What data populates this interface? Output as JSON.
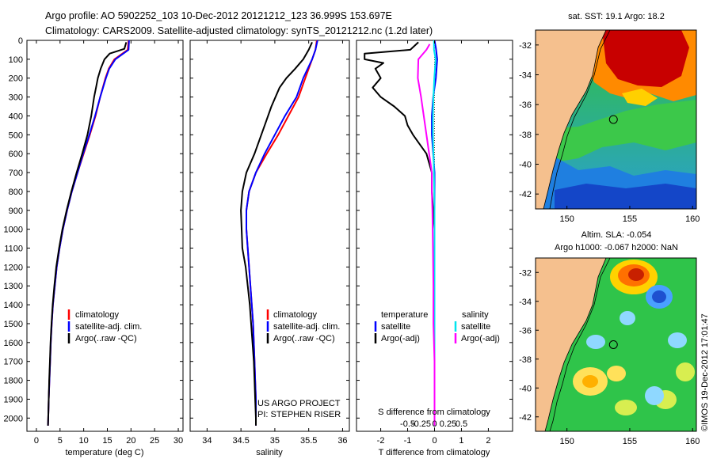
{
  "title_line1": "Argo profile: AO 5902252_103 10-Dec-2012 20121212_123 36.999S 153.697E",
  "title_line2": "Climatology: CARS2009. Satellite-adjusted climatology: synTS_20121212.nc (1.2d later)",
  "chart_data": [
    {
      "type": "line",
      "xlabel": "temperature (deg C)",
      "xlim": [
        -2,
        31
      ],
      "xticks": [
        0,
        5,
        10,
        15,
        20,
        25,
        30
      ],
      "ylim": [
        0,
        2070
      ],
      "yticks": [
        0,
        100,
        200,
        300,
        400,
        500,
        600,
        700,
        800,
        900,
        1000,
        1100,
        1200,
        1300,
        1400,
        1500,
        1600,
        1700,
        1800,
        1900,
        2000
      ],
      "legend": [
        "climatology",
        "satellite-adj. clim.",
        "Argo(..raw -QC)"
      ],
      "series": [
        {
          "name": "climatology",
          "color": "#ff0000",
          "points": [
            [
              19.5,
              0
            ],
            [
              19.3,
              50
            ],
            [
              16.5,
              100
            ],
            [
              15.3,
              150
            ],
            [
              14.6,
              200
            ],
            [
              13.5,
              300
            ],
            [
              12.5,
              400
            ],
            [
              11.3,
              500
            ],
            [
              10,
              600
            ],
            [
              8.7,
              700
            ],
            [
              7.5,
              800
            ],
            [
              6.5,
              900
            ],
            [
              5.6,
              1000
            ],
            [
              4.9,
              1100
            ],
            [
              4.3,
              1200
            ],
            [
              3.9,
              1300
            ],
            [
              3.5,
              1400
            ],
            [
              3.25,
              1500
            ],
            [
              3.05,
              1600
            ],
            [
              2.9,
              1700
            ],
            [
              2.75,
              1800
            ],
            [
              2.6,
              1900
            ],
            [
              2.5,
              2000
            ],
            [
              2.45,
              2040
            ]
          ]
        },
        {
          "name": "satellite-adj. clim.",
          "color": "#0000ff",
          "points": [
            [
              19.6,
              0
            ],
            [
              19.5,
              50
            ],
            [
              16.7,
              100
            ],
            [
              15.4,
              150
            ],
            [
              14.7,
              200
            ],
            [
              13.5,
              300
            ],
            [
              12.4,
              400
            ],
            [
              11.2,
              500
            ],
            [
              9.9,
              600
            ],
            [
              8.7,
              700
            ],
            [
              7.5,
              800
            ],
            [
              6.5,
              900
            ],
            [
              5.6,
              1000
            ],
            [
              4.9,
              1100
            ],
            [
              4.3,
              1200
            ],
            [
              3.9,
              1300
            ],
            [
              3.5,
              1400
            ],
            [
              3.25,
              1500
            ],
            [
              3.05,
              1600
            ],
            [
              2.9,
              1700
            ],
            [
              2.75,
              1800
            ],
            [
              2.6,
              1900
            ],
            [
              2.5,
              2000
            ],
            [
              2.45,
              2040
            ]
          ]
        },
        {
          "name": "Argo(..raw -QC)",
          "color": "#000000",
          "points": [
            [
              19,
              10
            ],
            [
              18.6,
              45
            ],
            [
              15.5,
              70
            ],
            [
              14.4,
              100
            ],
            [
              13.6,
              150
            ],
            [
              13,
              200
            ],
            [
              12.6,
              250
            ],
            [
              12.2,
              300
            ],
            [
              11.6,
              400
            ],
            [
              10.8,
              500
            ],
            [
              9.7,
              600
            ],
            [
              8.5,
              700
            ],
            [
              7.4,
              800
            ],
            [
              6.4,
              900
            ],
            [
              5.5,
              1000
            ],
            [
              4.8,
              1100
            ],
            [
              4.2,
              1200
            ],
            [
              3.8,
              1300
            ],
            [
              3.45,
              1400
            ],
            [
              3.2,
              1500
            ],
            [
              3,
              1600
            ],
            [
              2.85,
              1700
            ],
            [
              2.7,
              1800
            ],
            [
              2.6,
              1900
            ],
            [
              2.5,
              2000
            ],
            [
              2.45,
              2040
            ]
          ]
        }
      ]
    },
    {
      "type": "line",
      "xlabel": "salinity",
      "xlim": [
        33.75,
        36.1
      ],
      "xticks": [
        34,
        34.5,
        35,
        35.5,
        36
      ],
      "xticklabels": [
        "34",
        "34.5",
        "35",
        "35.5",
        "36"
      ],
      "ylim": [
        0,
        2070
      ],
      "legend": [
        "climatology",
        "satellite-adj. clim.",
        "Argo(..raw -QC)"
      ],
      "annotation": [
        "US ARGO PROJECT",
        "PI: STEPHEN RISER"
      ],
      "series": [
        {
          "name": "climatology",
          "color": "#ff0000",
          "points": [
            [
              35.62,
              0
            ],
            [
              35.6,
              50
            ],
            [
              35.55,
              100
            ],
            [
              35.45,
              200
            ],
            [
              35.35,
              300
            ],
            [
              35.2,
              400
            ],
            [
              35.05,
              500
            ],
            [
              34.88,
              600
            ],
            [
              34.72,
              700
            ],
            [
              34.62,
              800
            ],
            [
              34.58,
              900
            ],
            [
              34.58,
              1000
            ],
            [
              34.6,
              1100
            ],
            [
              34.62,
              1200
            ],
            [
              34.64,
              1300
            ],
            [
              34.66,
              1400
            ],
            [
              34.68,
              1500
            ],
            [
              34.69,
              1600
            ],
            [
              34.7,
              1700
            ],
            [
              34.71,
              1800
            ],
            [
              34.72,
              1900
            ],
            [
              34.72,
              2000
            ],
            [
              34.72,
              2040
            ]
          ]
        },
        {
          "name": "satellite-adj. clim.",
          "color": "#0000ff",
          "points": [
            [
              35.63,
              0
            ],
            [
              35.6,
              50
            ],
            [
              35.55,
              100
            ],
            [
              35.42,
              200
            ],
            [
              35.32,
              300
            ],
            [
              35.15,
              400
            ],
            [
              35,
              500
            ],
            [
              34.85,
              600
            ],
            [
              34.72,
              700
            ],
            [
              34.62,
              800
            ],
            [
              34.58,
              900
            ],
            [
              34.58,
              1000
            ],
            [
              34.6,
              1100
            ],
            [
              34.62,
              1200
            ],
            [
              34.64,
              1300
            ],
            [
              34.66,
              1400
            ],
            [
              34.68,
              1500
            ],
            [
              34.69,
              1600
            ],
            [
              34.7,
              1700
            ],
            [
              34.71,
              1800
            ],
            [
              34.72,
              1900
            ],
            [
              34.72,
              2000
            ],
            [
              34.72,
              2040
            ]
          ]
        },
        {
          "name": "Argo(..raw -QC)",
          "color": "#000000",
          "points": [
            [
              35.55,
              10
            ],
            [
              35.5,
              50
            ],
            [
              35.42,
              100
            ],
            [
              35.3,
              150
            ],
            [
              35.17,
              200
            ],
            [
              35.07,
              250
            ],
            [
              34.95,
              350
            ],
            [
              34.85,
              450
            ],
            [
              34.7,
              600
            ],
            [
              34.58,
              700
            ],
            [
              34.52,
              800
            ],
            [
              34.5,
              900
            ],
            [
              34.51,
              1000
            ],
            [
              34.52,
              1100
            ],
            [
              34.57,
              1200
            ],
            [
              34.6,
              1300
            ],
            [
              34.63,
              1400
            ],
            [
              34.65,
              1500
            ],
            [
              34.67,
              1600
            ],
            [
              34.69,
              1700
            ],
            [
              34.7,
              1800
            ],
            [
              34.71,
              1900
            ],
            [
              34.72,
              2000
            ],
            [
              34.72,
              2040
            ]
          ]
        }
      ]
    },
    {
      "type": "line",
      "xlabel": "T difference from climatology",
      "xlim": [
        -2.9,
        2.9
      ],
      "xticks": [
        -2,
        -1,
        0,
        1,
        2
      ],
      "top_label": "S difference from climatology",
      "top_ticks": [
        -0.5,
        -0.25,
        0,
        0.25,
        0.5
      ],
      "top_ticklabels": [
        "-0.5",
        "-0.25",
        "0",
        "0.25",
        "0.5"
      ],
      "ylim": [
        0,
        2070
      ],
      "legend": [
        [
          "temperature",
          "satellite",
          "Argo(-adj)"
        ],
        [
          "salinity",
          "satellite",
          "Argo(-adj)"
        ]
      ],
      "series": [
        {
          "name": "temperature satellite",
          "color": "#0000ff",
          "points": [
            [
              0,
              0
            ],
            [
              0.05,
              40
            ],
            [
              0.1,
              100
            ],
            [
              0.05,
              200
            ],
            [
              -0.05,
              300
            ],
            [
              -0.1,
              400
            ],
            [
              -0.1,
              500
            ],
            [
              -0.05,
              600
            ],
            [
              0,
              700
            ],
            [
              0,
              1000
            ],
            [
              0,
              1500
            ],
            [
              0,
              2040
            ]
          ]
        },
        {
          "name": "temperature Argo(-adj)",
          "color": "#000000",
          "points": [
            [
              -0.6,
              10
            ],
            [
              -0.9,
              50
            ],
            [
              -2.6,
              70
            ],
            [
              -2.6,
              100
            ],
            [
              -1.9,
              120
            ],
            [
              -2.2,
              150
            ],
            [
              -2,
              200
            ],
            [
              -2.3,
              250
            ],
            [
              -2,
              300
            ],
            [
              -1.5,
              350
            ],
            [
              -1.1,
              400
            ],
            [
              -1,
              450
            ],
            [
              -0.8,
              500
            ],
            [
              -0.55,
              550
            ],
            [
              -0.3,
              600
            ],
            [
              -0.2,
              650
            ],
            [
              -0.1,
              700
            ],
            [
              -0.1,
              800
            ],
            [
              -0.05,
              900
            ],
            [
              0,
              1000
            ],
            [
              0,
              1500
            ],
            [
              0,
              2040
            ]
          ]
        },
        {
          "name": "salinity satellite",
          "color": "#00e5ee",
          "points": [
            [
              -0.01,
              0
            ],
            [
              -0.01,
              50
            ],
            [
              0.02,
              100
            ],
            [
              -0.005,
              200
            ],
            [
              -0.02,
              300
            ],
            [
              -0.03,
              400
            ],
            [
              -0.03,
              500
            ],
            [
              -0.02,
              600
            ],
            [
              -0.01,
              700
            ],
            [
              -0.005,
              800
            ],
            [
              0,
              900
            ],
            [
              0,
              2040
            ]
          ]
        },
        {
          "name": "salinity Argo(-adj)",
          "color": "#ff00ff",
          "points": [
            [
              -0.09,
              20
            ],
            [
              -0.15,
              50
            ],
            [
              -0.3,
              100
            ],
            [
              -0.31,
              200
            ],
            [
              -0.25,
              300
            ],
            [
              -0.2,
              400
            ],
            [
              -0.15,
              500
            ],
            [
              -0.1,
              600
            ],
            [
              -0.05,
              700
            ],
            [
              -0.05,
              800
            ],
            [
              -0.04,
              900
            ],
            [
              -0.03,
              1100
            ],
            [
              -0.02,
              1300
            ],
            [
              -0.02,
              1500
            ],
            [
              0,
              1700
            ],
            [
              0,
              2040
            ]
          ]
        }
      ]
    },
    {
      "type": "heatmap",
      "title": "sat. SST: 19.1  Argo: 18.2",
      "xlim": [
        147.5,
        160.3
      ],
      "ylim": [
        -43,
        -31
      ],
      "xticks": [
        150,
        155,
        160
      ],
      "yticks": [
        -32,
        -34,
        -36,
        -38,
        -40,
        -42
      ],
      "marker_lon": 153.697,
      "marker_lat": -36.999
    },
    {
      "type": "heatmap",
      "title": "Altim. SLA: -0.054",
      "subtitle": "Argo h1000: -0.067 h2000: NaN",
      "xlim": [
        147.5,
        160.3
      ],
      "ylim": [
        -43,
        -31
      ],
      "xticks": [
        150,
        155,
        160
      ],
      "yticks": [
        -32,
        -34,
        -36,
        -38,
        -40,
        -42
      ],
      "marker_lon": 153.697,
      "marker_lat": -36.999
    }
  ],
  "side_label": "©IMOS 19-Dec-2012 17:01:47"
}
